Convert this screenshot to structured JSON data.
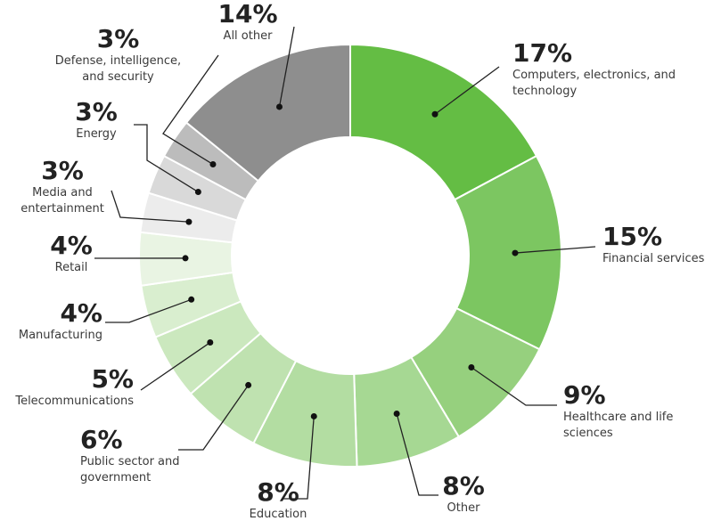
{
  "chart_data": {
    "type": "donut",
    "categories": [
      "Computers, electronics, and technology",
      "Financial services",
      "Healthcare and life sciences",
      "Other",
      "Education",
      "Public sector and government",
      "Telecommunications",
      "Manufacturing",
      "Retail",
      "Media and entertainment",
      "Energy",
      "Defense, intelligence, and security",
      "All other"
    ],
    "values": [
      17,
      15,
      9,
      8,
      8,
      6,
      5,
      4,
      4,
      3,
      3,
      3,
      14
    ],
    "value_labels": [
      "17%",
      "15%",
      "9%",
      "8%",
      "8%",
      "6%",
      "5%",
      "4%",
      "4%",
      "3%",
      "3%",
      "3%",
      "14%"
    ],
    "colors": [
      "#64bd44",
      "#7cc661",
      "#96d07e",
      "#a6d893",
      "#b3dda2",
      "#bfe2b0",
      "#cbe8be",
      "#d9eecf",
      "#e9f4e3",
      "#ececec",
      "#d9d9d9",
      "#bcbcbc",
      "#8e8e8e"
    ]
  }
}
